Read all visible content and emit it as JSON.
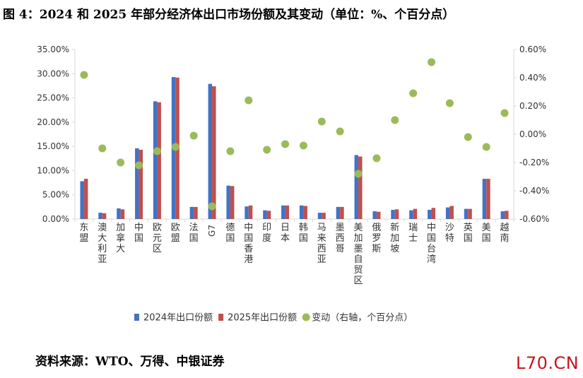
{
  "title": "图 4：2024 和 2025 年部分经济体出口市场份额及其变动（单位：%、个百分点）",
  "source": "资料来源：WTO、万得、中银证券",
  "watermark": "L70.CN",
  "colors": {
    "bar2024": "#4472c4",
    "bar2025": "#c0504d",
    "change": "#9bbb59",
    "axis": "#d9d9d9"
  },
  "chart_data": {
    "type": "bar",
    "title": "",
    "xlabel": "",
    "ylabel": "",
    "categories": [
      "东盟",
      "澳大利亚",
      "加拿大",
      "中国",
      "欧元区",
      "欧盟",
      "法国",
      "G7",
      "德国",
      "中国香港",
      "印度",
      "日本",
      "韩国",
      "马来西亚",
      "墨西哥",
      "美加墨自贸区",
      "俄罗斯",
      "新加坡",
      "瑞士",
      "中国台湾",
      "沙特",
      "英国",
      "美国",
      "越南"
    ],
    "series": [
      {
        "name": "2024年出口份额",
        "axis": "left",
        "type": "bar",
        "values": [
          7.8,
          1.3,
          2.2,
          14.6,
          24.3,
          29.3,
          2.5,
          27.9,
          6.9,
          2.6,
          1.8,
          2.8,
          2.8,
          1.3,
          2.5,
          13.2,
          1.6,
          1.9,
          1.8,
          1.9,
          2.4,
          2.1,
          8.3,
          1.6
        ]
      },
      {
        "name": "2025年出口份额",
        "axis": "left",
        "type": "bar",
        "values": [
          8.3,
          1.2,
          2.0,
          14.3,
          24.1,
          29.2,
          2.5,
          27.4,
          6.8,
          2.8,
          1.7,
          2.8,
          2.7,
          1.3,
          2.5,
          12.9,
          1.5,
          2.0,
          2.1,
          2.3,
          2.7,
          2.1,
          8.3,
          1.7
        ]
      },
      {
        "name": "变动（右轴，个百分点）",
        "axis": "right",
        "type": "scatter",
        "values": [
          0.42,
          -0.1,
          -0.2,
          -0.22,
          -0.12,
          -0.09,
          -0.01,
          -0.51,
          -0.12,
          0.24,
          -0.11,
          -0.07,
          -0.08,
          0.09,
          0.02,
          -0.28,
          -0.17,
          0.1,
          0.29,
          0.51,
          0.22,
          -0.02,
          -0.09,
          0.15
        ]
      }
    ],
    "yleft": {
      "min": 0,
      "max": 35,
      "ticks": [
        "0.00%",
        "5.00%",
        "10.00%",
        "15.00%",
        "20.00%",
        "25.00%",
        "30.00%",
        "35.00%"
      ]
    },
    "yright": {
      "min": -0.6,
      "max": 0.6,
      "ticks": [
        "-0.60%",
        "-0.40%",
        "-0.20%",
        "0.00%",
        "0.20%",
        "0.40%",
        "0.60%"
      ]
    },
    "grid": false,
    "legend": "bottom"
  }
}
